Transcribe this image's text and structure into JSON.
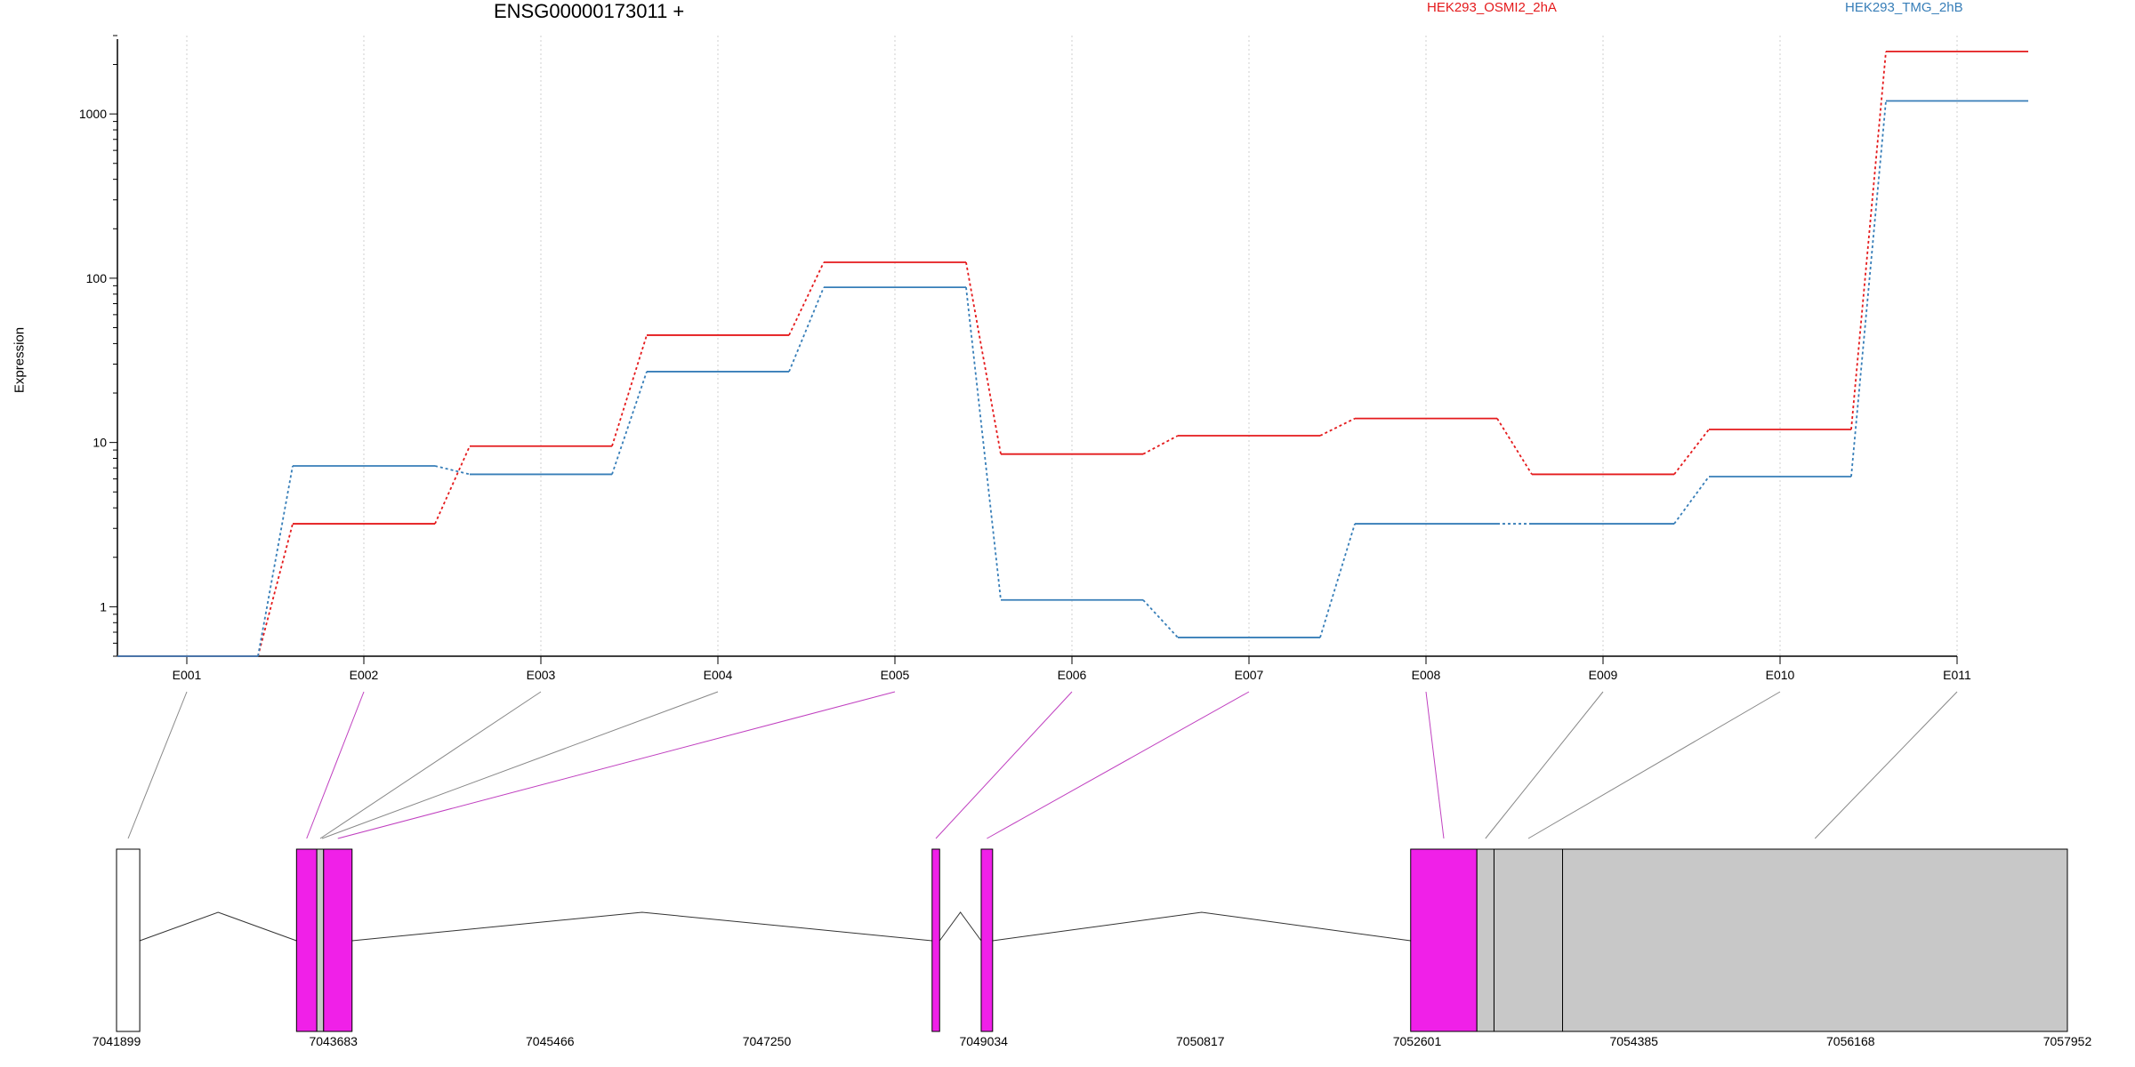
{
  "chart_data": {
    "type": "line",
    "title": "ENSG00000173011 +",
    "ylabel": "Expression",
    "yscale": "log",
    "yticks": [
      1,
      10,
      100,
      1000
    ],
    "ylim": [
      0.5,
      3000
    ],
    "categories": [
      "E001",
      "E002",
      "E003",
      "E004",
      "E005",
      "E006",
      "E007",
      "E008",
      "E009",
      "E010",
      "E011"
    ],
    "series": [
      {
        "name": "HEK293_OSMI2_2hA",
        "color": "#e41a1c",
        "values": [
          0.5,
          3.2,
          9.5,
          45,
          125,
          8.5,
          11,
          14,
          6.4,
          12,
          2400
        ]
      },
      {
        "name": "HEK293_TMG_2hB",
        "color": "#377eb8",
        "values": [
          0.5,
          7.2,
          6.4,
          27,
          88,
          1.1,
          0.65,
          3.2,
          3.2,
          6.2,
          1200
        ]
      }
    ],
    "grid": "vertical dotted",
    "legend_position": "top",
    "gene_model": {
      "range": [
        7041899,
        7057952
      ],
      "axis_ticks": [
        7041899,
        7043683,
        7045466,
        7047250,
        7049034,
        7050817,
        7052601,
        7054385,
        7056168,
        7057952
      ],
      "exons": [
        {
          "start": 7041899,
          "end": 7042090,
          "fill": "#ffffff",
          "links_to": "E001"
        },
        {
          "start": 7043380,
          "end": 7043547,
          "fill": "#f020e8",
          "links_to": "E002"
        },
        {
          "start": 7043547,
          "end": 7043603,
          "fill": "#c8c8c8",
          "links_to": "E003"
        },
        {
          "start": 7043603,
          "end": 7043837,
          "fill": "#f020e8",
          "links_to": "E005"
        },
        {
          "start": 7048610,
          "end": 7048672,
          "fill": "#f020e8",
          "links_to": "E006"
        },
        {
          "start": 7049014,
          "end": 7049108,
          "fill": "#f020e8",
          "links_to": "E007"
        },
        {
          "start": 7052548,
          "end": 7053093,
          "fill": "#f020e8",
          "links_to": "E008"
        },
        {
          "start": 7053093,
          "end": 7053234,
          "fill": "#c8c8c8",
          "links_to": "E009"
        },
        {
          "start": 7053234,
          "end": 7053798,
          "fill": "#c8c8c8",
          "links_to": "E010"
        },
        {
          "start": 7053798,
          "end": 7057952,
          "fill": "#c8c8c8",
          "links_to": "E011"
        }
      ]
    }
  }
}
